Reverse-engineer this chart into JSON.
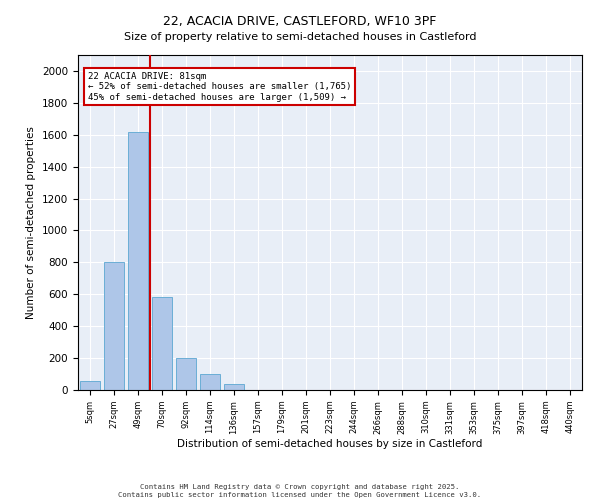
{
  "title_line1": "22, ACACIA DRIVE, CASTLEFORD, WF10 3PF",
  "title_line2": "Size of property relative to semi-detached houses in Castleford",
  "xlabel": "Distribution of semi-detached houses by size in Castleford",
  "ylabel": "Number of semi-detached properties",
  "bin_labels": [
    "5sqm",
    "27sqm",
    "49sqm",
    "70sqm",
    "92sqm",
    "114sqm",
    "136sqm",
    "157sqm",
    "179sqm",
    "201sqm",
    "223sqm",
    "244sqm",
    "266sqm",
    "288sqm",
    "310sqm",
    "331sqm",
    "353sqm",
    "375sqm",
    "397sqm",
    "418sqm",
    "440sqm"
  ],
  "bar_values": [
    55,
    800,
    1620,
    580,
    200,
    100,
    35,
    0,
    0,
    0,
    0,
    0,
    0,
    0,
    0,
    0,
    0,
    0,
    0,
    0
  ],
  "bar_color": "#aec6e8",
  "bar_edge_color": "#6baed6",
  "annotation_address": "22 ACACIA DRIVE: 81sqm",
  "annotation_smaller": "← 52% of semi-detached houses are smaller (1,765)",
  "annotation_larger": "45% of semi-detached houses are larger (1,509) →",
  "ylim": [
    0,
    2100
  ],
  "yticks": [
    0,
    200,
    400,
    600,
    800,
    1000,
    1200,
    1400,
    1600,
    1800,
    2000
  ],
  "vline_color": "#cc0000",
  "annotation_box_color": "#cc0000",
  "background_color": "#e8eef7",
  "footer_line1": "Contains HM Land Registry data © Crown copyright and database right 2025.",
  "footer_line2": "Contains public sector information licensed under the Open Government Licence v3.0."
}
